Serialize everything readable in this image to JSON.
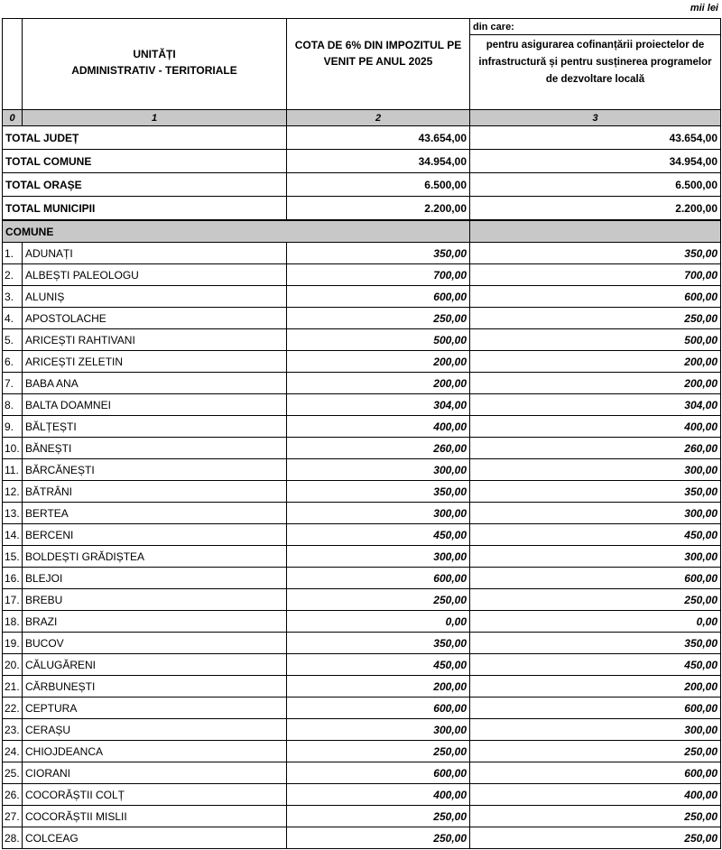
{
  "unit": "mii lei",
  "table": {
    "header": {
      "col1": [
        "UNITĂȚI",
        "ADMINISTRATIV - TERITORIALE"
      ],
      "col2": "COTA DE 6% DIN IMPOZITUL PE VENIT PE ANUL 2025",
      "col3_top": "din care:",
      "col3": "pentru asigurarea cofinanțării proiectelor de infrastructură și pentru susținerea programelor de dezvoltare locală"
    },
    "column_numbers": [
      "0",
      "1",
      "2",
      "3"
    ],
    "totals": [
      [
        "TOTAL JUDEȚ",
        "43.654,00",
        "43.654,00"
      ],
      [
        "TOTAL COMUNE",
        "34.954,00",
        "34.954,00"
      ],
      [
        "TOTAL ORAȘE",
        "6.500,00",
        "6.500,00"
      ],
      [
        "TOTAL MUNICIPII",
        "2.200,00",
        "2.200,00"
      ]
    ],
    "section": "COMUNE",
    "rows": [
      [
        "1.",
        "ADUNAȚI",
        "350,00",
        "350,00"
      ],
      [
        "2.",
        "ALBEȘTI PALEOLOGU",
        "700,00",
        "700,00"
      ],
      [
        "3.",
        "ALUNIȘ",
        "600,00",
        "600,00"
      ],
      [
        "4.",
        "APOSTOLACHE",
        "250,00",
        "250,00"
      ],
      [
        "5.",
        "ARICEȘTI RAHTIVANI",
        "500,00",
        "500,00"
      ],
      [
        "6.",
        "ARICEȘTI ZELETIN",
        "200,00",
        "200,00"
      ],
      [
        "7.",
        "BABA ANA",
        "200,00",
        "200,00"
      ],
      [
        "8.",
        "BALTA DOAMNEI",
        "304,00",
        "304,00"
      ],
      [
        "9.",
        "BĂLȚEȘTI",
        "400,00",
        "400,00"
      ],
      [
        "10.",
        "BĂNEȘTI",
        "260,00",
        "260,00"
      ],
      [
        "11.",
        "BĂRCĂNEȘTI",
        "300,00",
        "300,00"
      ],
      [
        "12.",
        "BĂTRÂNI",
        "350,00",
        "350,00"
      ],
      [
        "13.",
        "BERTEA",
        "300,00",
        "300,00"
      ],
      [
        "14.",
        "BERCENI",
        "450,00",
        "450,00"
      ],
      [
        "15.",
        "BOLDEȘTI GRĂDIȘTEA",
        "300,00",
        "300,00"
      ],
      [
        "16.",
        "BLEJOI",
        "600,00",
        "600,00"
      ],
      [
        "17.",
        "BREBU",
        "250,00",
        "250,00"
      ],
      [
        "18.",
        "BRAZI",
        "0,00",
        "0,00"
      ],
      [
        "19.",
        "BUCOV",
        "350,00",
        "350,00"
      ],
      [
        "20.",
        "CĂLUGĂRENI",
        "450,00",
        "450,00"
      ],
      [
        "21.",
        "CĂRBUNEȘTI",
        "200,00",
        "200,00"
      ],
      [
        "22.",
        "CEPTURA",
        "600,00",
        "600,00"
      ],
      [
        "23.",
        "CERAȘU",
        "300,00",
        "300,00"
      ],
      [
        "24.",
        "CHIOJDEANCA",
        "250,00",
        "250,00"
      ],
      [
        "25.",
        "CIORANI",
        "600,00",
        "600,00"
      ],
      [
        "26.",
        "COCORĂȘTII COLȚ",
        "400,00",
        "400,00"
      ],
      [
        "27.",
        "COCORĂȘTII MISLII",
        "250,00",
        "250,00"
      ],
      [
        "28.",
        "COLCEAG",
        "250,00",
        "250,00"
      ]
    ]
  }
}
